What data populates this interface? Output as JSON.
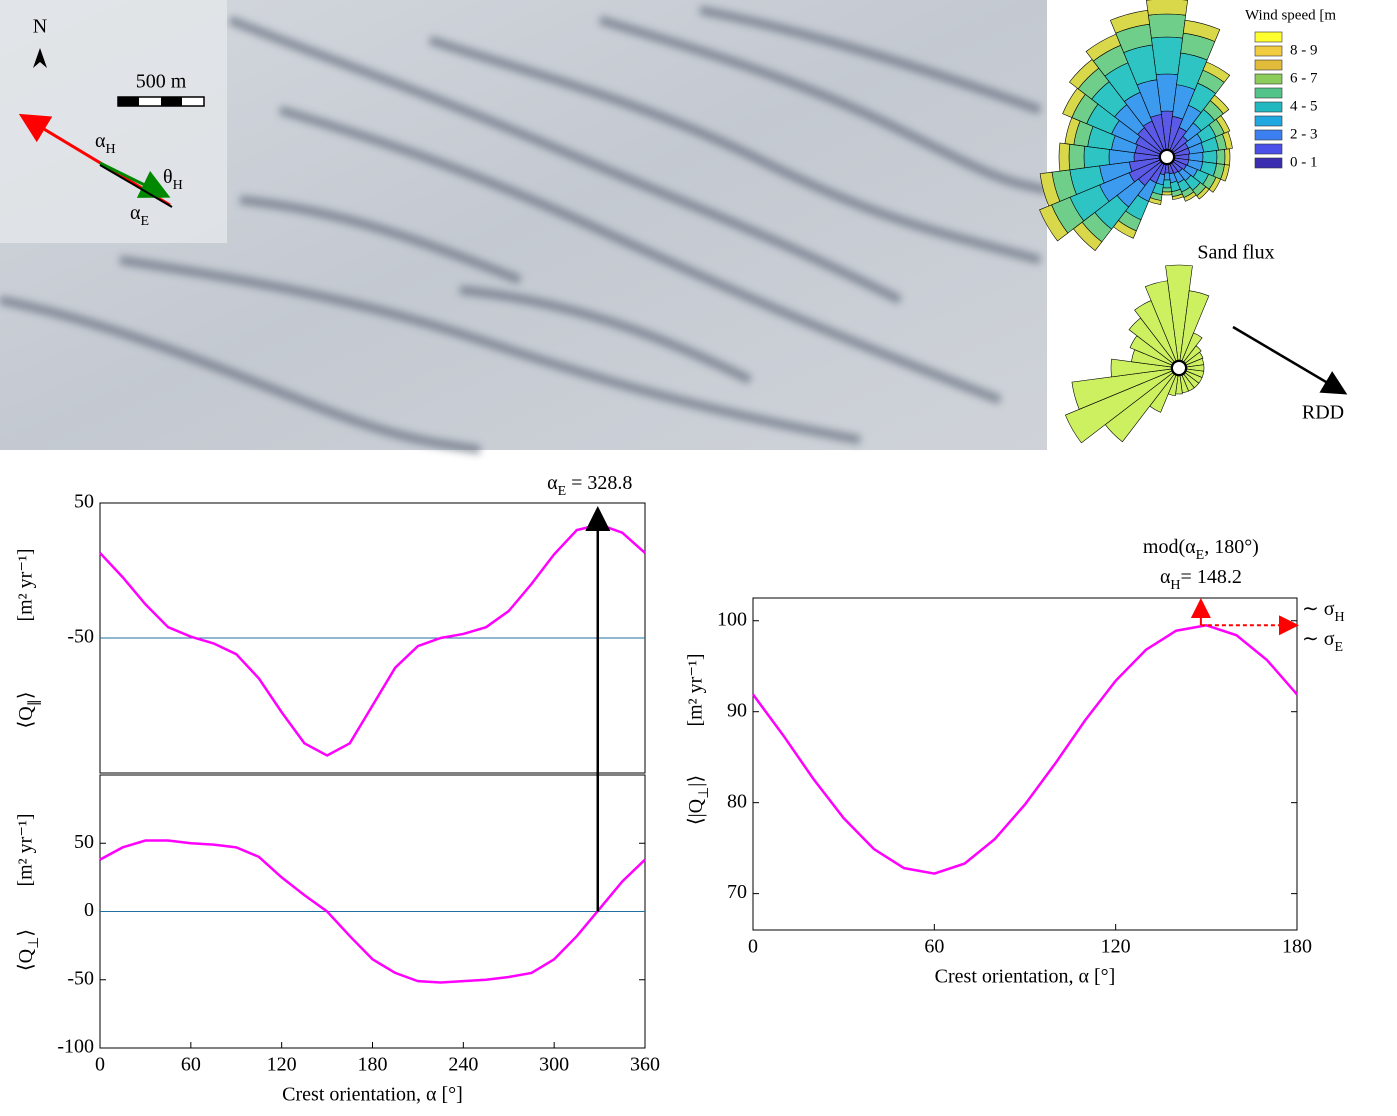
{
  "chart_data": [
    {
      "type": "line",
      "ylabel": {
        "pre": "⟨Q",
        "sub": "∥",
        "post": "⟩"
      },
      "yunit": "[m² yr⁻¹]",
      "xlim": [
        0,
        360
      ],
      "ylim": [
        -150,
        50
      ],
      "yticks": [
        50,
        -50
      ],
      "hline": -50,
      "hline_color": "#1f6f9f",
      "color": "#ff00ff",
      "x": [
        0,
        15,
        30,
        45,
        60,
        75,
        90,
        105,
        120,
        135,
        150,
        165,
        180,
        195,
        210,
        225,
        240,
        255,
        270,
        285,
        300,
        315,
        330,
        345,
        360
      ],
      "values": [
        13,
        -5,
        -25,
        -42,
        -49,
        -54,
        -62,
        -80,
        -105,
        -128,
        -137,
        -128,
        -100,
        -72,
        -56,
        -50,
        -47,
        -42,
        -30,
        -10,
        12,
        30,
        34,
        28,
        13
      ],
      "annotation": {
        "pre": "α",
        "sub": "E",
        "post": " = 328.8",
        "value": 328.8
      }
    },
    {
      "type": "line",
      "ylabel": {
        "pre": "⟨Q",
        "sub": "⊥",
        "post": "⟩"
      },
      "yunit": "[m² yr⁻¹]",
      "xlabel": "Crest orientation, α [°]",
      "xlim": [
        0,
        360
      ],
      "ylim": [
        -100,
        100
      ],
      "yticks": [
        -100,
        -50,
        0,
        50
      ],
      "xticks": [
        0,
        60,
        120,
        180,
        240,
        300,
        360
      ],
      "hline": 0,
      "hline_color": "#1f6f9f",
      "color": "#ff00ff",
      "x": [
        0,
        15,
        30,
        45,
        60,
        75,
        90,
        105,
        120,
        135,
        150,
        165,
        180,
        195,
        210,
        225,
        240,
        255,
        270,
        285,
        300,
        315,
        330,
        345,
        360
      ],
      "values": [
        38,
        47,
        52,
        52,
        50,
        49,
        47,
        40,
        25,
        12,
        0,
        -18,
        -35,
        -45,
        -51,
        -52,
        -51,
        -50,
        -48,
        -45,
        -35,
        -18,
        2,
        22,
        38
      ]
    },
    {
      "type": "line",
      "ylabel": {
        "pre": "⟨|Q",
        "sub": "⊥",
        "post": "|⟩"
      },
      "yunit": "[m² yr⁻¹]",
      "xlabel": "Crest orientation, α [°]",
      "xlim": [
        0,
        180
      ],
      "ylim": [
        66,
        102.5
      ],
      "yticks": [
        70,
        80,
        90,
        100
      ],
      "xticks": [
        0,
        60,
        120,
        180
      ],
      "color": "#ff00ff",
      "x": [
        0,
        10,
        20,
        30,
        40,
        50,
        60,
        70,
        80,
        90,
        100,
        110,
        120,
        130,
        140,
        150,
        160,
        170,
        180
      ],
      "values": [
        91.9,
        87.4,
        82.6,
        78.3,
        74.9,
        72.8,
        72.2,
        73.3,
        76.0,
        79.8,
        84.3,
        89.1,
        93.4,
        96.8,
        98.9,
        99.5,
        98.4,
        95.7,
        91.9
      ],
      "annotation_top": {
        "pre": "mod(α",
        "sub": "E",
        "post": ", 180°)"
      },
      "annotation": {
        "pre": "α",
        "sub": "H",
        "post": "= 148.2",
        "value": 148.2,
        "peak": 99.5
      },
      "sigma_h": {
        "pre": "∼ σ",
        "sub": "H"
      },
      "sigma_e": {
        "pre": "∼ σ",
        "sub": "E"
      }
    },
    {
      "type": "rose",
      "title": "Wind speed [m",
      "directions": [
        0,
        15,
        30,
        45,
        60,
        75,
        90,
        105,
        120,
        135,
        150,
        165,
        180,
        195,
        210,
        225,
        240,
        255,
        270,
        285,
        300,
        315,
        330,
        345
      ],
      "series": [
        {
          "color": "#5a5ae6",
          "values": [
            38,
            33,
            24,
            18,
            15,
            15,
            14,
            14,
            13,
            11,
            10,
            9,
            8,
            10,
            20,
            28,
            33,
            30,
            25,
            24,
            26,
            29,
            31,
            35
          ]
        },
        {
          "color": "#3d9bef",
          "values": [
            37,
            32,
            24,
            17,
            15,
            14,
            14,
            14,
            12,
            11,
            10,
            9,
            7,
            10,
            20,
            27,
            32,
            30,
            25,
            24,
            26,
            29,
            31,
            35
          ]
        },
        {
          "color": "#2fc4c4",
          "values": [
            37,
            32,
            24,
            17,
            15,
            15,
            14,
            14,
            12,
            12,
            10,
            9,
            8,
            10,
            20,
            28,
            32,
            30,
            25,
            24,
            27,
            29,
            32,
            35
          ]
        },
        {
          "color": "#6fcf8a",
          "values": [
            23,
            20,
            14,
            11,
            9,
            8,
            8,
            8,
            8,
            7,
            6,
            5,
            4,
            6,
            12,
            16,
            20,
            18,
            15,
            14,
            16,
            17,
            19,
            21
          ]
        },
        {
          "color": "#d8d84a",
          "values": [
            15,
            13,
            9,
            7,
            6,
            6,
            5,
            5,
            5,
            4,
            4,
            3,
            3,
            4,
            8,
            11,
            13,
            12,
            10,
            9,
            10,
            11,
            12,
            14
          ]
        }
      ],
      "legend": {
        "colors": [
          "#ffff30",
          "#f2cc40",
          "#e0bc3a",
          "#8ccc5a",
          "#52c48a",
          "#22b8c0",
          "#22a8e0",
          "#3c7ff0",
          "#4a50e8",
          "#3c2eb0"
        ],
        "labels": [
          null,
          "8 - 9",
          null,
          "6 - 7",
          null,
          "4 - 5",
          null,
          "2 - 3",
          null,
          "0 - 1"
        ]
      }
    },
    {
      "type": "rose",
      "title": "Sand flux",
      "note": "RDD",
      "directions": [
        0,
        15,
        30,
        45,
        60,
        75,
        90,
        105,
        120,
        135,
        150,
        165,
        180,
        195,
        210,
        225,
        240,
        255,
        270,
        285,
        300,
        315,
        330,
        345
      ],
      "series": [
        {
          "color": "#ccf060",
          "values": [
            95,
            70,
            30,
            20,
            18,
            17,
            17,
            17,
            17,
            17,
            17,
            17,
            18,
            20,
            40,
            85,
            115,
            100,
            60,
            40,
            45,
            55,
            65,
            80
          ]
        }
      ]
    }
  ],
  "map_inset": {
    "north": "N",
    "scale": "500 m",
    "alpha_h": {
      "pre": "α",
      "sub": "H"
    },
    "theta_h": {
      "pre": "θ",
      "sub": "H"
    },
    "alpha_e": {
      "pre": "α",
      "sub": "E"
    }
  }
}
